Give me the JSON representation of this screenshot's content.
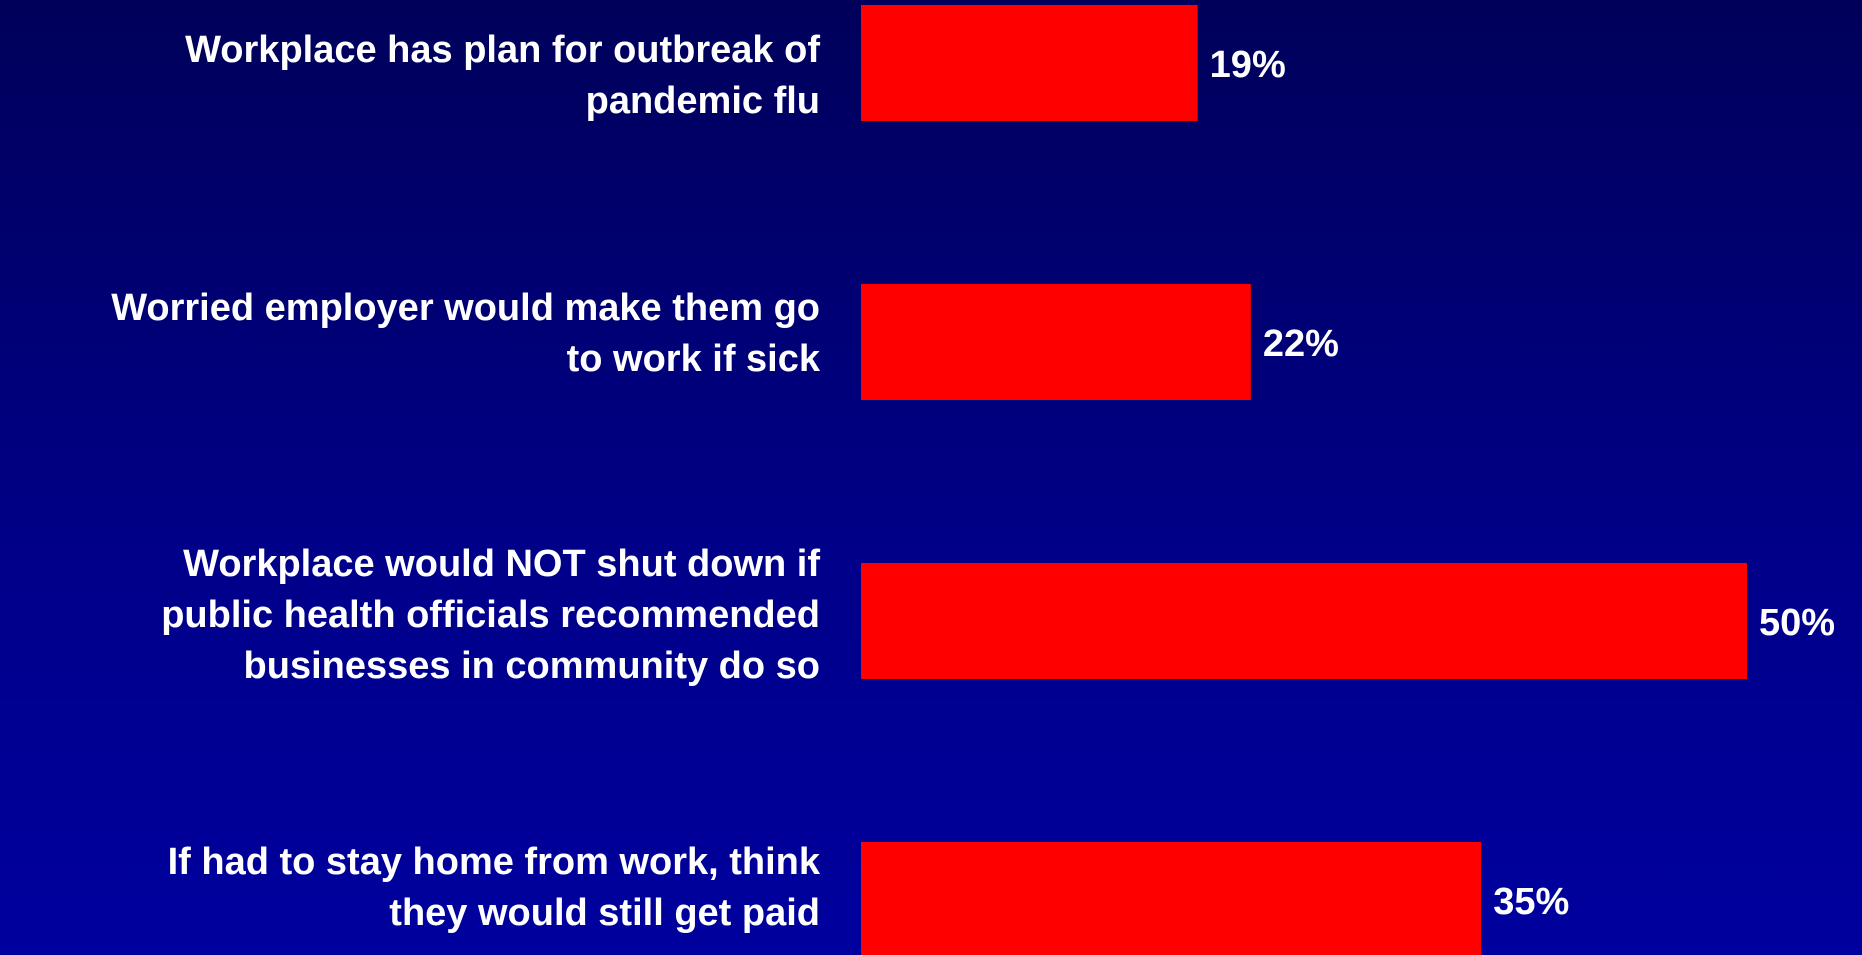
{
  "chart_data": {
    "type": "bar",
    "orientation": "horizontal",
    "categories": [
      "Workplace has plan for outbreak of pandemic flu",
      "Worried employer would make them go to work if sick",
      "Workplace would NOT shut down if public health officials recommended businesses in community do so",
      "If had to stay home from work, think they would still get paid"
    ],
    "category_lines": [
      [
        "Workplace has plan for outbreak of",
        "pandemic flu"
      ],
      [
        "Worried employer would make them go",
        "to work if sick"
      ],
      [
        "Workplace would NOT shut down if",
        "public health officials recommended",
        "businesses in community do so"
      ],
      [
        "If had to stay home from work, think",
        "they would still get paid"
      ]
    ],
    "values": [
      19,
      22,
      50,
      35
    ],
    "value_labels": [
      "19%",
      "22%",
      "50%",
      "35%"
    ],
    "xlim": [
      0,
      50
    ],
    "grid": false,
    "legend": "none",
    "bar_color": "#ff0000",
    "text_color": "#ffffff"
  }
}
